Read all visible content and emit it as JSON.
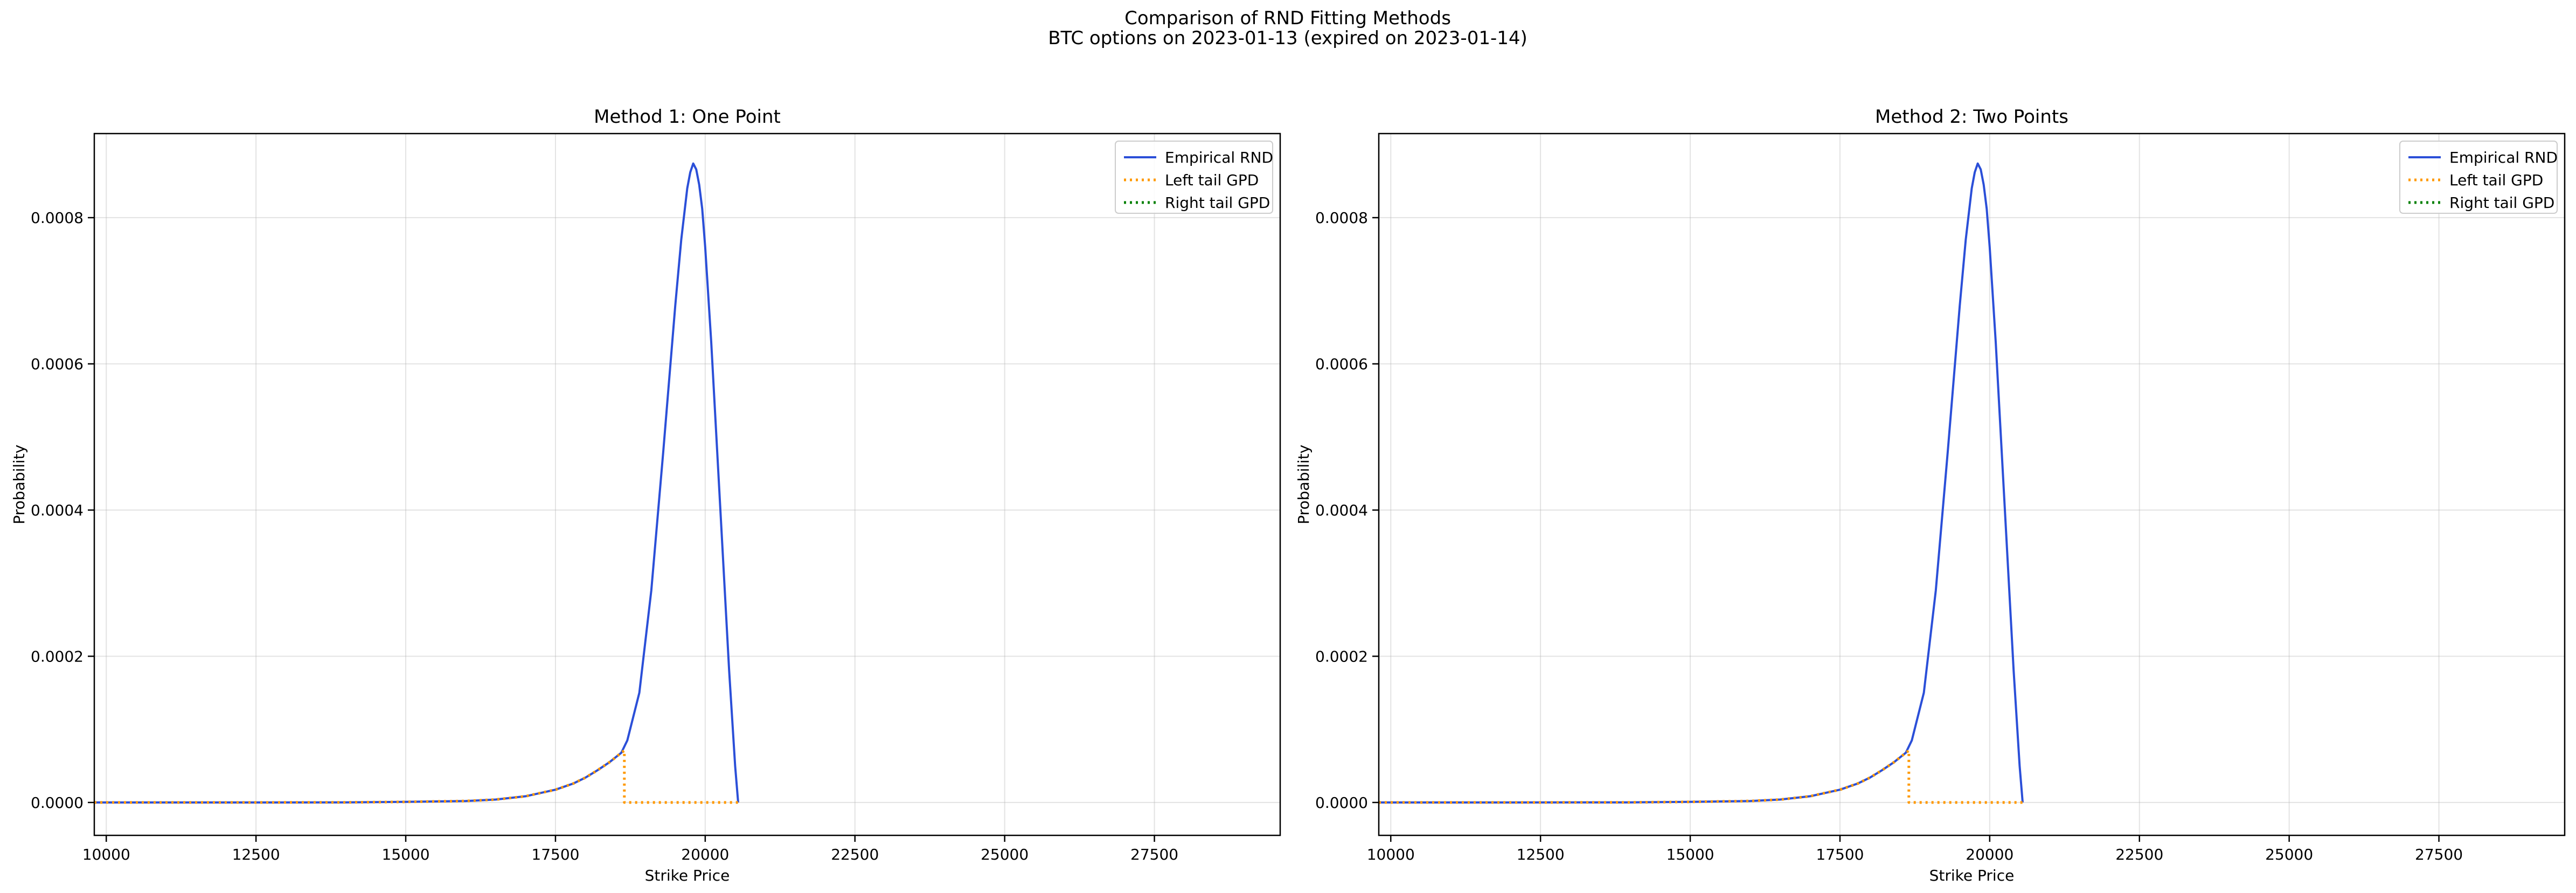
{
  "figure": {
    "title_line1": "Comparison of RND Fitting Methods",
    "title_line2": "BTC options on 2023-01-13 (expired on 2023-01-14)"
  },
  "colors": {
    "empirical": "#2b4fd8",
    "left_tail": "#ff9900",
    "right_tail": "#008000"
  },
  "chart_data": [
    {
      "type": "line",
      "title": "Method 1: One Point",
      "xlabel": "Strike Price",
      "ylabel": "Probability",
      "xlim": [
        9800,
        29600
      ],
      "ylim": [
        -4.5e-05,
        0.000915
      ],
      "xticks": [
        "10000",
        "12500",
        "15000",
        "17500",
        "20000",
        "22500",
        "25000",
        "27500"
      ],
      "xtick_values": [
        10000,
        12500,
        15000,
        17500,
        20000,
        22500,
        25000,
        27500
      ],
      "yticks": [
        "0.0000",
        "0.0002",
        "0.0004",
        "0.0006",
        "0.0008"
      ],
      "ytick_values": [
        0,
        0.0002,
        0.0004,
        0.0006,
        0.0008
      ],
      "grid": true,
      "legend_position": "top-right",
      "series": [
        {
          "name": "Empirical RND",
          "style": "solid",
          "color": "#2b4fd8",
          "x": [
            9800,
            12000,
            14000,
            15000,
            16000,
            16500,
            17000,
            17500,
            17800,
            18000,
            18200,
            18400,
            18600,
            18700,
            18900,
            19100,
            19300,
            19500,
            19600,
            19700,
            19750,
            19800,
            19850,
            19900,
            19950,
            20000,
            20100,
            20200,
            20300,
            20400,
            20500,
            20550
          ],
          "y": [
            0,
            0,
            2e-07,
            8e-07,
            2e-06,
            4e-06,
            8.5e-06,
            1.75e-05,
            2.6e-05,
            3.4e-05,
            4.4e-05,
            5.5e-05,
            6.8e-05,
            8.5e-05,
            0.00015,
            0.00029,
            0.00048,
            0.00068,
            0.00077,
            0.00084,
            0.000862,
            0.000874,
            0.000866,
            0.000845,
            0.000812,
            0.00076,
            0.00063,
            0.00048,
            0.00033,
            0.00018,
            5e-05,
            0
          ]
        },
        {
          "name": "Left tail GPD",
          "style": "dotted",
          "color": "#ff9900",
          "x": [
            9800,
            12000,
            14000,
            15000,
            16000,
            16500,
            17000,
            17500,
            17800,
            18000,
            18200,
            18400,
            18600,
            18650,
            18650,
            20550
          ],
          "y": [
            0,
            0,
            2e-07,
            8e-07,
            2e-06,
            4e-06,
            8.5e-06,
            1.75e-05,
            2.6e-05,
            3.4e-05,
            4.4e-05,
            5.5e-05,
            6.8e-05,
            7.1e-05,
            0,
            0
          ]
        },
        {
          "name": "Right tail GPD",
          "style": "dotted",
          "color": "#008000",
          "x": [],
          "y": []
        }
      ]
    },
    {
      "type": "line",
      "title": "Method 2: Two Points",
      "xlabel": "Strike Price",
      "ylabel": "Probability",
      "xlim": [
        9800,
        29600
      ],
      "ylim": [
        -4.5e-05,
        0.000915
      ],
      "xticks": [
        "10000",
        "12500",
        "15000",
        "17500",
        "20000",
        "22500",
        "25000",
        "27500"
      ],
      "xtick_values": [
        10000,
        12500,
        15000,
        17500,
        20000,
        22500,
        25000,
        27500
      ],
      "yticks": [
        "0.0000",
        "0.0002",
        "0.0004",
        "0.0006",
        "0.0008"
      ],
      "ytick_values": [
        0,
        0.0002,
        0.0004,
        0.0006,
        0.0008
      ],
      "grid": true,
      "legend_position": "top-right",
      "series": [
        {
          "name": "Empirical RND",
          "style": "solid",
          "color": "#2b4fd8",
          "x": [
            9800,
            12000,
            14000,
            15000,
            16000,
            16500,
            17000,
            17500,
            17800,
            18000,
            18200,
            18400,
            18600,
            18700,
            18900,
            19100,
            19300,
            19500,
            19600,
            19700,
            19750,
            19800,
            19850,
            19900,
            19950,
            20000,
            20100,
            20200,
            20300,
            20400,
            20500,
            20550
          ],
          "y": [
            0,
            0,
            2e-07,
            8e-07,
            2e-06,
            4e-06,
            8.5e-06,
            1.75e-05,
            2.6e-05,
            3.4e-05,
            4.4e-05,
            5.5e-05,
            6.8e-05,
            8.5e-05,
            0.00015,
            0.00029,
            0.00048,
            0.00068,
            0.00077,
            0.00084,
            0.000862,
            0.000874,
            0.000866,
            0.000845,
            0.000812,
            0.00076,
            0.00063,
            0.00048,
            0.00033,
            0.00018,
            5e-05,
            0
          ]
        },
        {
          "name": "Left tail GPD",
          "style": "dotted",
          "color": "#ff9900",
          "x": [
            9800,
            12000,
            14000,
            15000,
            16000,
            16500,
            17000,
            17500,
            17800,
            18000,
            18200,
            18400,
            18600,
            18650,
            18650,
            20550
          ],
          "y": [
            0,
            0,
            2e-07,
            8e-07,
            2e-06,
            4e-06,
            8.5e-06,
            1.75e-05,
            2.6e-05,
            3.4e-05,
            4.4e-05,
            5.5e-05,
            6.8e-05,
            7.1e-05,
            0,
            0
          ]
        },
        {
          "name": "Right tail GPD",
          "style": "dotted",
          "color": "#008000",
          "x": [],
          "y": []
        }
      ]
    }
  ]
}
